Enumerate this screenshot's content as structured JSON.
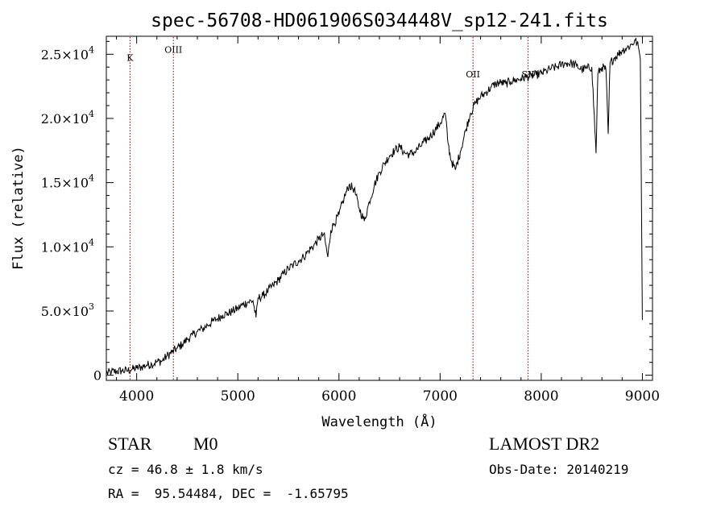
{
  "chart_data": {
    "type": "line",
    "title": "spec-56708-HD061906S034448V_sp12-241.fits",
    "xlabel": "Wavelength (Å)",
    "ylabel": "Flux (relative)",
    "xlim": [
      3700,
      9100
    ],
    "ylim": [
      -400,
      26400
    ],
    "x_ticks": [
      {
        "value": 4000,
        "label": "4000"
      },
      {
        "value": 5000,
        "label": "5000"
      },
      {
        "value": 6000,
        "label": "6000"
      },
      {
        "value": 7000,
        "label": "7000"
      },
      {
        "value": 8000,
        "label": "8000"
      },
      {
        "value": 9000,
        "label": "9000"
      }
    ],
    "y_ticks": [
      {
        "value": 0,
        "mant": "0",
        "exp": ""
      },
      {
        "value": 5000,
        "mant": "5.0×10",
        "exp": "3"
      },
      {
        "value": 10000,
        "mant": "1.0×10",
        "exp": "4"
      },
      {
        "value": 15000,
        "mant": "1.5×10",
        "exp": "4"
      },
      {
        "value": 20000,
        "mant": "2.0×10",
        "exp": "4"
      },
      {
        "value": 25000,
        "mant": "2.5×10",
        "exp": "4"
      }
    ],
    "line_markers": [
      {
        "label": "K",
        "x": 3934,
        "label_y": 24500
      },
      {
        "label": "OIII",
        "x": 4363,
        "label_y": 25100
      },
      {
        "label": "OII",
        "x": 7325,
        "label_y": 23200
      },
      {
        "label": "SII",
        "x": 7870,
        "label_y": 23200
      }
    ],
    "series": [
      {
        "color": "#000000",
        "marker_color": "#8b0000",
        "points": [
          [
            3700,
            150
          ],
          [
            3750,
            250
          ],
          [
            3800,
            300
          ],
          [
            3850,
            350
          ],
          [
            3900,
            350
          ],
          [
            3950,
            450
          ],
          [
            4000,
            550
          ],
          [
            4050,
            650
          ],
          [
            4100,
            800
          ],
          [
            4150,
            850
          ],
          [
            4200,
            1050
          ],
          [
            4250,
            1100
          ],
          [
            4300,
            1500
          ],
          [
            4350,
            1800
          ],
          [
            4400,
            2100
          ],
          [
            4450,
            2400
          ],
          [
            4500,
            2800
          ],
          [
            4550,
            3100
          ],
          [
            4600,
            3400
          ],
          [
            4650,
            3600
          ],
          [
            4700,
            3900
          ],
          [
            4750,
            4200
          ],
          [
            4800,
            4400
          ],
          [
            4850,
            4700
          ],
          [
            4900,
            4800
          ],
          [
            4950,
            5000
          ],
          [
            5000,
            5200
          ],
          [
            5050,
            5500
          ],
          [
            5100,
            5700
          ],
          [
            5150,
            5800
          ],
          [
            5180,
            4500
          ],
          [
            5200,
            6000
          ],
          [
            5250,
            6200
          ],
          [
            5300,
            6600
          ],
          [
            5350,
            7000
          ],
          [
            5400,
            7400
          ],
          [
            5450,
            7900
          ],
          [
            5500,
            8300
          ],
          [
            5550,
            8600
          ],
          [
            5600,
            8900
          ],
          [
            5650,
            9200
          ],
          [
            5700,
            9700
          ],
          [
            5750,
            10100
          ],
          [
            5800,
            10600
          ],
          [
            5850,
            11000
          ],
          [
            5890,
            9200
          ],
          [
            5920,
            11300
          ],
          [
            5950,
            11800
          ],
          [
            6000,
            12500
          ],
          [
            6050,
            13800
          ],
          [
            6100,
            14800
          ],
          [
            6150,
            14500
          ],
          [
            6200,
            13000
          ],
          [
            6250,
            12000
          ],
          [
            6300,
            13500
          ],
          [
            6350,
            14800
          ],
          [
            6400,
            15800
          ],
          [
            6450,
            16500
          ],
          [
            6500,
            17100
          ],
          [
            6550,
            17500
          ],
          [
            6600,
            17800
          ],
          [
            6650,
            17300
          ],
          [
            6700,
            17200
          ],
          [
            6750,
            17400
          ],
          [
            6800,
            17800
          ],
          [
            6850,
            18200
          ],
          [
            6900,
            18600
          ],
          [
            6950,
            19100
          ],
          [
            7000,
            19600
          ],
          [
            7050,
            20400
          ],
          [
            7080,
            18000
          ],
          [
            7110,
            16700
          ],
          [
            7150,
            16000
          ],
          [
            7200,
            17400
          ],
          [
            7250,
            19000
          ],
          [
            7300,
            20400
          ],
          [
            7350,
            21200
          ],
          [
            7400,
            21700
          ],
          [
            7450,
            22000
          ],
          [
            7500,
            22400
          ],
          [
            7550,
            22700
          ],
          [
            7600,
            22800
          ],
          [
            7650,
            22700
          ],
          [
            7700,
            22900
          ],
          [
            7750,
            23000
          ],
          [
            7800,
            23100
          ],
          [
            7850,
            23200
          ],
          [
            7900,
            23300
          ],
          [
            7950,
            23400
          ],
          [
            8000,
            23500
          ],
          [
            8050,
            23700
          ],
          [
            8100,
            23900
          ],
          [
            8150,
            24000
          ],
          [
            8200,
            24200
          ],
          [
            8250,
            24300
          ],
          [
            8300,
            24300
          ],
          [
            8350,
            24100
          ],
          [
            8400,
            23800
          ],
          [
            8450,
            23900
          ],
          [
            8500,
            24000
          ],
          [
            8542,
            17300
          ],
          [
            8560,
            23500
          ],
          [
            8600,
            24000
          ],
          [
            8640,
            23800
          ],
          [
            8662,
            18800
          ],
          [
            8680,
            24300
          ],
          [
            8720,
            24700
          ],
          [
            8760,
            25000
          ],
          [
            8800,
            25300
          ],
          [
            8850,
            25500
          ],
          [
            8900,
            25800
          ],
          [
            8930,
            26100
          ],
          [
            8960,
            25600
          ],
          [
            8980,
            24600
          ],
          [
            9000,
            4300
          ]
        ]
      }
    ]
  },
  "info": {
    "object_class": "STAR",
    "subclass": "M0",
    "survey": "LAMOST DR2",
    "cz": "cz = 46.8 ± 1.8 km/s",
    "obs_date": "Obs-Date: 20140219",
    "radec": "RA =  95.54484, DEC =  -1.65795"
  }
}
